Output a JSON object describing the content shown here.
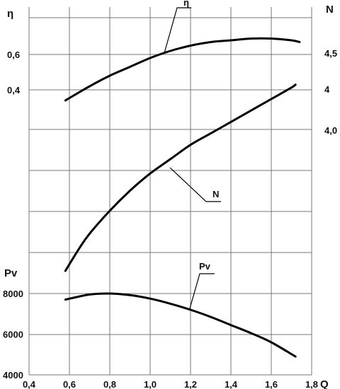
{
  "chart_data": {
    "type": "line",
    "x_axis": {
      "label": "Q",
      "range": [
        0.4,
        1.8
      ],
      "ticks": [
        0.4,
        0.6,
        0.8,
        1.0,
        1.2,
        1.4,
        1.6,
        1.8
      ],
      "tick_labels": [
        "0,4",
        "0,6",
        "0,8",
        "1,0",
        "1,2",
        "1,4",
        "1,6",
        "1,8"
      ]
    },
    "eta_axis": {
      "label": "η",
      "ticks": [
        0.6,
        0.4
      ],
      "tick_labels": [
        "0,6",
        "0,4"
      ]
    },
    "n_axis": {
      "label": "N",
      "tick_labels": [
        "4,5",
        "4",
        "4,0"
      ]
    },
    "pv_axis": {
      "label": "Pv",
      "range": [
        4000,
        8000
      ],
      "ticks": [
        8000,
        6000,
        4000
      ],
      "tick_labels": [
        "8000",
        "6000",
        "4000"
      ]
    },
    "grid": true,
    "series": [
      {
        "name": "η",
        "axis": "eta",
        "x": [
          0.58,
          0.7,
          0.8,
          0.9,
          1.0,
          1.1,
          1.2,
          1.3,
          1.4,
          1.5,
          1.6,
          1.7,
          1.74
        ],
        "y": [
          0.34,
          0.42,
          0.48,
          0.53,
          0.58,
          0.62,
          0.65,
          0.67,
          0.68,
          0.69,
          0.69,
          0.68,
          0.67
        ]
      },
      {
        "name": "N",
        "axis": "n",
        "x": [
          0.58,
          0.65,
          0.7,
          0.8,
          0.9,
          1.0,
          1.1,
          1.2,
          1.3,
          1.4,
          1.5,
          1.6,
          1.7,
          1.72
        ],
        "y": [
          3.42,
          3.5,
          3.55,
          3.63,
          3.7,
          3.76,
          3.81,
          3.86,
          3.9,
          3.94,
          3.98,
          4.02,
          4.06,
          4.07
        ]
      },
      {
        "name": "Pv",
        "axis": "pv",
        "x": [
          0.58,
          0.7,
          0.8,
          0.9,
          1.0,
          1.1,
          1.2,
          1.3,
          1.4,
          1.5,
          1.6,
          1.72
        ],
        "y": [
          7700,
          7950,
          8000,
          7920,
          7750,
          7500,
          7200,
          6850,
          6450,
          6050,
          5600,
          4900
        ]
      }
    ]
  }
}
